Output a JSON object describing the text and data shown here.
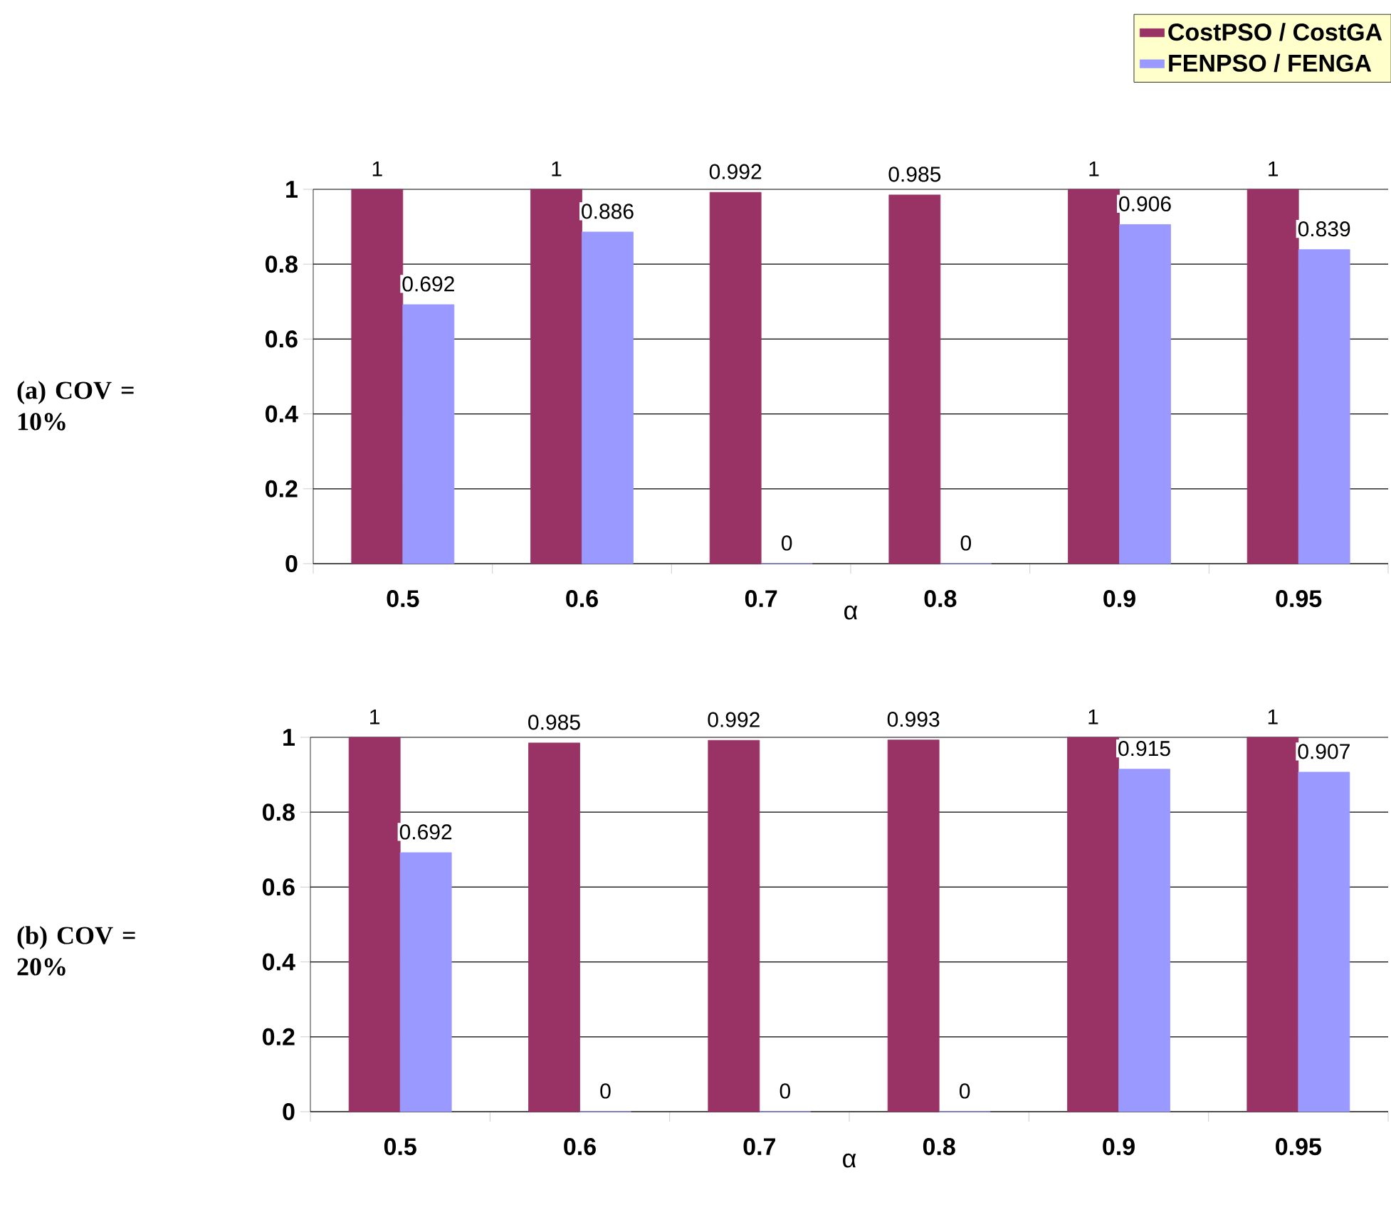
{
  "chart_data": [
    {
      "type": "bar",
      "ylabel": "(a) COV = 10%",
      "xlabel": "α",
      "categories": [
        "0.5",
        "0.6",
        "0.7",
        "0.8",
        "0.9",
        "0.95"
      ],
      "series": [
        {
          "name": "CostPSO / CostGA",
          "color": "#993366",
          "values": [
            1,
            1,
            0.992,
            0.985,
            1,
            1
          ]
        },
        {
          "name": "FENPSO / FENGA",
          "color": "#9999ff",
          "values": [
            0.692,
            0.886,
            0,
            0,
            0.906,
            0.839
          ]
        }
      ],
      "ylim": [
        0,
        1
      ],
      "yticks": [
        0,
        0.2,
        0.4,
        0.6,
        0.8,
        1
      ],
      "grid": "y",
      "data_labels": true,
      "legend": "top right"
    },
    {
      "type": "bar",
      "ylabel": "(b) COV = 20%",
      "xlabel": "α",
      "categories": [
        "0.5",
        "0.6",
        "0.7",
        "0.8",
        "0.9",
        "0.95"
      ],
      "series": [
        {
          "color": "#993366",
          "values": [
            1,
            0.985,
            0.992,
            0.993,
            1,
            1
          ]
        },
        {
          "color": "#9999ff",
          "values": [
            0.692,
            0,
            0,
            0,
            0.915,
            0.907
          ]
        }
      ],
      "ylim": [
        0,
        1
      ],
      "yticks": [
        0,
        0.2,
        0.4,
        0.6,
        0.8,
        1
      ],
      "grid": "y",
      "data_labels": true
    }
  ]
}
